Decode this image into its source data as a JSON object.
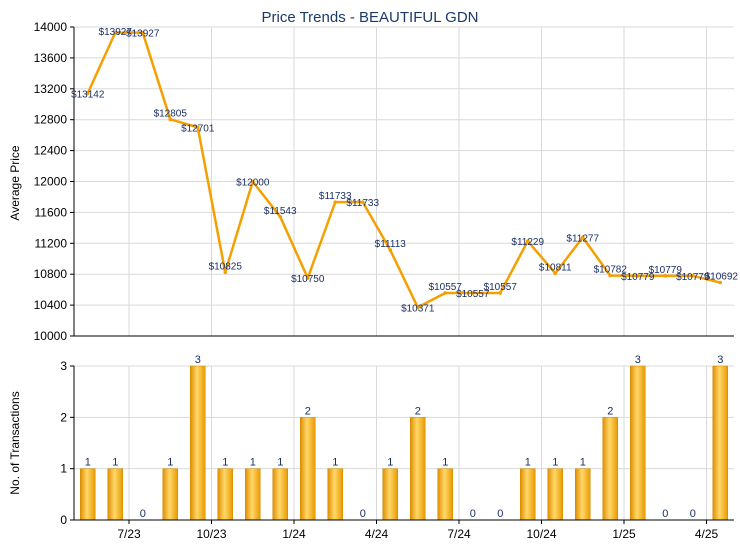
{
  "chart_data": [
    {
      "type": "line",
      "title": "Price Trends - BEAUTIFUL GDN",
      "xlabel": "",
      "ylabel": "Average Price",
      "ylim": [
        10000,
        14000
      ],
      "yticks": [
        "10000",
        "10400",
        "10800",
        "11200",
        "11600",
        "12000",
        "12400",
        "12800",
        "13200",
        "13600",
        "14000"
      ],
      "xticks": [
        "7/23",
        "10/23",
        "1/24",
        "4/24",
        "7/24",
        "10/24",
        "1/25",
        "4/25"
      ],
      "grid": true,
      "color": "#f5a000",
      "values": [
        13142,
        13927,
        13927,
        12805,
        12701,
        10825,
        12000,
        11543,
        10750,
        11733,
        11733,
        11113,
        10371,
        10557,
        10557,
        10557,
        11229,
        10811,
        11277,
        10782,
        10779,
        10779,
        10779,
        10692
      ],
      "labels": [
        "$13142",
        "$13927",
        "$13927",
        "$12805",
        "$12701",
        "$10825",
        "$12000",
        "$11543",
        "$10750",
        "$11733",
        "$11733",
        "$11113",
        "$10371",
        "$10557",
        "$10557",
        "$10557",
        "$11229",
        "$10811",
        "$11277",
        "$10782",
        "$10779",
        "$10779",
        "$10779",
        "$10692"
      ]
    },
    {
      "type": "bar",
      "xlabel": "",
      "ylabel": "No. of Transactions",
      "ylim": [
        0,
        3
      ],
      "yticks": [
        "0",
        "1",
        "2",
        "3"
      ],
      "xticks": [
        "7/23",
        "10/23",
        "1/24",
        "4/24",
        "7/24",
        "10/24",
        "1/25",
        "4/25"
      ],
      "grid": true,
      "color": "#f5a000",
      "values": [
        1,
        1,
        0,
        1,
        3,
        1,
        1,
        1,
        2,
        1,
        0,
        1,
        2,
        1,
        0,
        0,
        1,
        1,
        1,
        2,
        3,
        0,
        0,
        3
      ],
      "labels": [
        "1",
        "1",
        "0",
        "1",
        "3",
        "1",
        "1",
        "1",
        "2",
        "1",
        "0",
        "1",
        "2",
        "1",
        "0",
        "0",
        "1",
        "1",
        "1",
        "2",
        "3",
        "0",
        "0",
        "3"
      ]
    }
  ]
}
